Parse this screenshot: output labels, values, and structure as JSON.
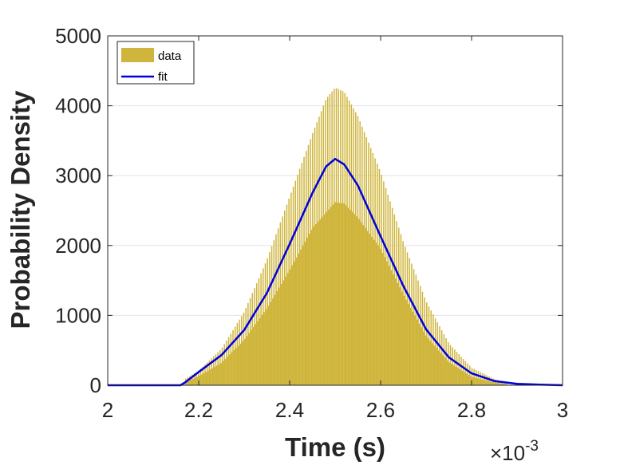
{
  "chart_data": {
    "type": "bar",
    "title": "",
    "xlabel": "Time (s)",
    "ylabel": "Probability Density",
    "x_exponent_label": "×10",
    "x_exponent_power": "-3",
    "xlim": [
      0.002,
      0.003
    ],
    "ylim": [
      0,
      5000
    ],
    "xticks": [
      0.002,
      0.0022,
      0.0024,
      0.0026,
      0.0028,
      0.003
    ],
    "xtick_labels": [
      "2",
      "2.2",
      "2.4",
      "2.6",
      "2.8",
      "3"
    ],
    "yticks": [
      0,
      1000,
      2000,
      3000,
      4000,
      5000
    ],
    "ytick_labels": [
      "0",
      "1000",
      "2000",
      "3000",
      "4000",
      "5000"
    ],
    "grid": "horizontal",
    "legend_placement": "top-left",
    "series": [
      {
        "name": "data",
        "kind": "histogram",
        "color": "#cfb53b",
        "x_range": [
          0.00217,
          0.00288
        ],
        "upper_envelope": [
          [
            0.00217,
            90
          ],
          [
            0.0022,
            210
          ],
          [
            0.00225,
            520
          ],
          [
            0.0023,
            1050
          ],
          [
            0.00235,
            1800
          ],
          [
            0.0024,
            2700
          ],
          [
            0.00245,
            3600
          ],
          [
            0.00248,
            4100
          ],
          [
            0.0025,
            4260
          ],
          [
            0.00252,
            4200
          ],
          [
            0.00255,
            3850
          ],
          [
            0.0026,
            3050
          ],
          [
            0.00265,
            2050
          ],
          [
            0.0027,
            1200
          ],
          [
            0.00275,
            600
          ],
          [
            0.0028,
            250
          ],
          [
            0.00285,
            90
          ],
          [
            0.00288,
            20
          ]
        ],
        "lower_envelope": [
          [
            0.00217,
            40
          ],
          [
            0.0022,
            130
          ],
          [
            0.00225,
            320
          ],
          [
            0.0023,
            650
          ],
          [
            0.00235,
            1100
          ],
          [
            0.0024,
            1650
          ],
          [
            0.00245,
            2250
          ],
          [
            0.0025,
            2620
          ],
          [
            0.00252,
            2600
          ],
          [
            0.00255,
            2400
          ],
          [
            0.0026,
            1950
          ],
          [
            0.00265,
            1300
          ],
          [
            0.0027,
            700
          ],
          [
            0.00275,
            330
          ],
          [
            0.0028,
            120
          ],
          [
            0.00285,
            40
          ],
          [
            0.00288,
            10
          ]
        ]
      },
      {
        "name": "fit",
        "kind": "line",
        "color": "#0000dd",
        "points": [
          [
            0.002,
            0
          ],
          [
            0.00216,
            0
          ],
          [
            0.00217,
            40
          ],
          [
            0.0022,
            190
          ],
          [
            0.00225,
            430
          ],
          [
            0.0023,
            790
          ],
          [
            0.00235,
            1320
          ],
          [
            0.0024,
            2020
          ],
          [
            0.00245,
            2750
          ],
          [
            0.00248,
            3130
          ],
          [
            0.0025,
            3240
          ],
          [
            0.00252,
            3160
          ],
          [
            0.00255,
            2860
          ],
          [
            0.0026,
            2130
          ],
          [
            0.00265,
            1420
          ],
          [
            0.0027,
            800
          ],
          [
            0.00275,
            400
          ],
          [
            0.0028,
            170
          ],
          [
            0.00285,
            60
          ],
          [
            0.0029,
            20
          ],
          [
            0.00295,
            8
          ],
          [
            0.003,
            0
          ]
        ]
      }
    ]
  }
}
